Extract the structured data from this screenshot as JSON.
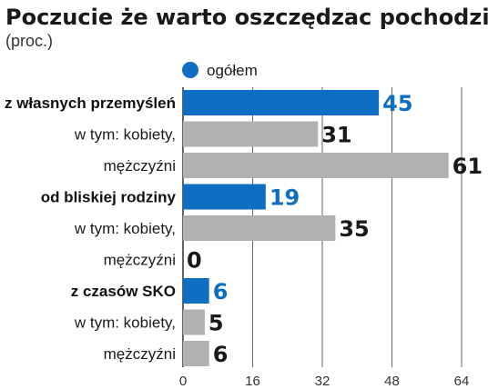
{
  "colors": {
    "main": "#0f6ec2",
    "sub": "#b1b1b3",
    "grid": "#555555",
    "text": "#1a1a1a"
  },
  "chart_data": {
    "type": "bar",
    "orientation": "horizontal",
    "title": "Poczucie że warto oszczędzac pochodzi z:",
    "subtitle": "(proc.)",
    "legend": {
      "label": "ogółem",
      "position": "top"
    },
    "xlim": [
      0,
      64
    ],
    "xticks": [
      0,
      16,
      32,
      48,
      64
    ],
    "grid": true,
    "categories": [
      "z własnych przemyśleń",
      "w tym: kobiety,",
      "mężczyźni",
      "od bliskiej rodziny",
      "w tym: kobiety,",
      "mężczyźni",
      "z czasów SKO",
      "w tym:  kobiety,",
      "mężczyźni"
    ],
    "values": [
      45,
      31,
      61,
      19,
      35,
      0,
      6,
      5,
      6
    ],
    "kinds": [
      "main",
      "sub",
      "sub",
      "main",
      "sub",
      "sub",
      "main",
      "sub",
      "sub"
    ]
  }
}
